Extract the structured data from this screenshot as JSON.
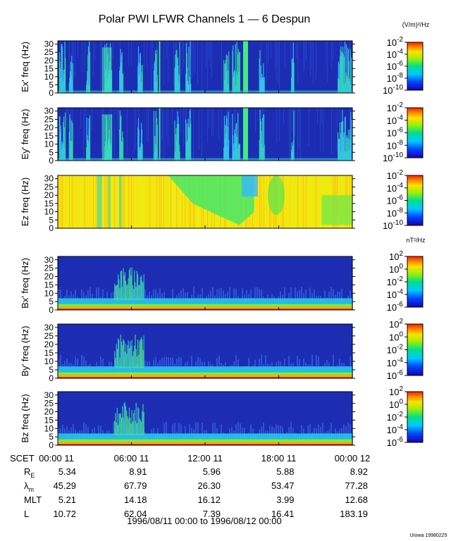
{
  "title": "Polar PWI LFWR Channels 1 — 6 Despun",
  "units_e": "(V/m)²/Hz",
  "units_b": "nT²/Hz",
  "chart_data": [
    {
      "type": "heatmap",
      "ylabel": "Ex' freq (Hz)",
      "yticks": [
        0,
        5,
        10,
        15,
        20,
        25,
        30
      ],
      "ylim": [
        0,
        32
      ],
      "colorbar": {
        "ticks": [
          "10^-2",
          "10^-4",
          "10^-6",
          "10^-8",
          "10^-10"
        ],
        "range_log10": [
          -10,
          -2
        ]
      },
      "description_levels": {
        "background_log10": -9,
        "bursts_hours": [
          [
            0.3,
            0.6
          ],
          [
            0.9,
            1.1
          ],
          [
            2.2,
            2.6
          ],
          [
            3.8,
            4.3
          ],
          [
            5.0,
            5.3
          ],
          [
            6.5,
            6.8
          ],
          [
            7.8,
            8.0
          ],
          [
            9.5,
            9.9
          ],
          [
            10.5,
            10.8
          ],
          [
            13.6,
            13.8
          ],
          [
            14.2,
            14.7
          ],
          [
            16.5,
            16.8
          ],
          [
            23.2,
            23.9
          ]
        ],
        "strong_band_hours": [
          [
            15.1,
            15.6
          ],
          [
            8.3,
            8.4
          ]
        ]
      }
    },
    {
      "type": "heatmap",
      "ylabel": "Ey' freq (Hz)",
      "yticks": [
        0,
        5,
        10,
        15,
        20,
        25,
        30
      ],
      "ylim": [
        0,
        32
      ],
      "colorbar": {
        "ticks": [
          "10^-2",
          "10^-4",
          "10^-6",
          "10^-8",
          "10^-10"
        ],
        "range_log10": [
          -10,
          -2
        ]
      }
    },
    {
      "type": "heatmap",
      "ylabel": "Ez freq (Hz)",
      "yticks": [
        0,
        5,
        10,
        15,
        20,
        25,
        30
      ],
      "ylim": [
        0,
        32
      ],
      "colorbar": {
        "ticks": [
          "10^-2",
          "10^-4",
          "10^-6",
          "10^-8",
          "10^-10"
        ],
        "range_log10": [
          -10,
          -2
        ]
      }
    },
    {
      "type": "heatmap",
      "ylabel": "Bx' freq (Hz)",
      "yticks": [
        0,
        5,
        10,
        15,
        20,
        25,
        30
      ],
      "ylim": [
        0,
        32
      ],
      "colorbar": {
        "ticks": [
          "10^2",
          "10^0",
          "10^-2",
          "10^-4",
          "10^-6"
        ],
        "range_log10": [
          -7,
          2
        ]
      }
    },
    {
      "type": "heatmap",
      "ylabel": "By' freq (Hz)",
      "yticks": [
        0,
        5,
        10,
        15,
        20,
        25,
        30
      ],
      "ylim": [
        0,
        32
      ],
      "colorbar": {
        "ticks": [
          "10^2",
          "10^0",
          "10^-2",
          "10^-4",
          "10^-6"
        ],
        "range_log10": [
          -7,
          2
        ]
      }
    },
    {
      "type": "heatmap",
      "ylabel": "Bz freq (Hz)",
      "yticks": [
        0,
        5,
        10,
        15,
        20,
        25,
        30
      ],
      "ylim": [
        0,
        32
      ],
      "colorbar": {
        "ticks": [
          "10^2",
          "10^0",
          "10^-2",
          "10^-4",
          "10^-6"
        ],
        "range_log10": [
          -7,
          2
        ]
      }
    }
  ],
  "xaxis": {
    "xlim_hours": [
      0,
      24
    ],
    "ticks": [
      {
        "hour": 0,
        "label": "00:00 11"
      },
      {
        "hour": 6,
        "label": "06:00 11"
      },
      {
        "hour": 12,
        "label": "12:00 11"
      },
      {
        "hour": 18,
        "label": "18:00 11"
      },
      {
        "hour": 24,
        "label": "00:00 12"
      }
    ]
  },
  "table": {
    "header_label": "SCET",
    "rows": [
      {
        "label": "R",
        "sub": "E",
        "values": [
          "5.34",
          "8.91",
          "5.96",
          "5.88",
          "8.92"
        ]
      },
      {
        "label": "λ",
        "sub": "m",
        "values": [
          "45.29",
          "67.79",
          "26.30",
          "53.47",
          "77.28"
        ]
      },
      {
        "label": "MLT",
        "sub": "",
        "values": [
          "5.21",
          "14.18",
          "16.12",
          "3.99",
          "12.68"
        ]
      },
      {
        "label": "L",
        "sub": "",
        "values": [
          "10.72",
          "62.04",
          "7.39",
          "16.41",
          "183.19"
        ]
      }
    ]
  },
  "date_range": "1996/08/11 00:00 to 1996/08/12 00:00",
  "footer": "UIowa 19980225",
  "colors": {
    "plot_bg": "#1f2fb4",
    "frame": "#000000"
  }
}
